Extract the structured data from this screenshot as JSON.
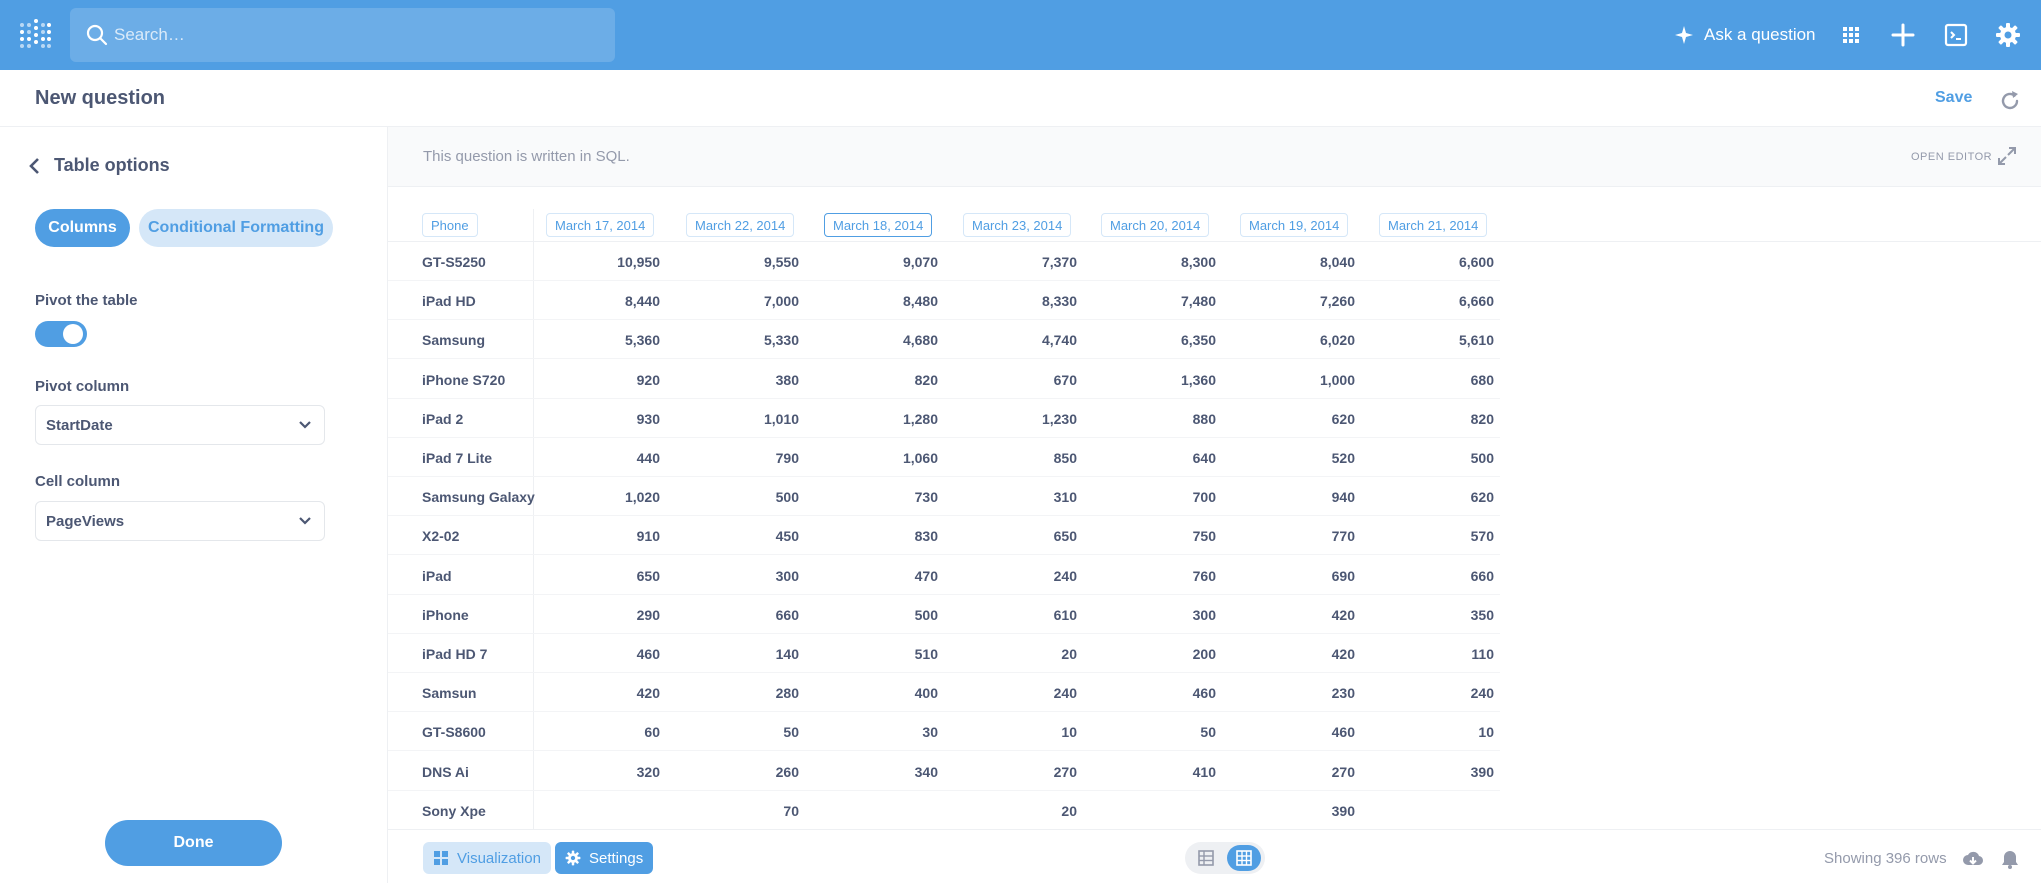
{
  "nav": {
    "search_placeholder": "Search…",
    "ask_label": "Ask a question",
    "icons": [
      "metabase-logo-icon",
      "search-icon",
      "sparkle-icon",
      "apps-grid-icon",
      "plus-icon",
      "sql-editor-icon",
      "gear-icon"
    ]
  },
  "header": {
    "title": "New question",
    "save_label": "Save"
  },
  "sidebar": {
    "back_label": "Table options",
    "tabs": [
      "Columns",
      "Conditional Formatting"
    ],
    "pivot_label": "Pivot the table",
    "pivot_on": true,
    "pivot_column_label": "Pivot column",
    "pivot_column_value": "StartDate",
    "cell_column_label": "Cell column",
    "cell_column_value": "PageViews",
    "done_label": "Done"
  },
  "main": {
    "sql_notice": "This question is written in SQL.",
    "open_editor": "OPEN EDITOR",
    "columns": [
      "Phone",
      "March 17, 2014",
      "March 22, 2014",
      "March 18, 2014",
      "March 23, 2014",
      "March 20, 2014",
      "March 19, 2014",
      "March 21, 2014"
    ],
    "selected_column": 3,
    "rows": [
      {
        "name": "GT-S5250",
        "values": [
          "10,950",
          "9,550",
          "9,070",
          "7,370",
          "8,300",
          "8,040",
          "6,600"
        ]
      },
      {
        "name": "iPad HD",
        "values": [
          "8,440",
          "7,000",
          "8,480",
          "8,330",
          "7,480",
          "7,260",
          "6,660"
        ]
      },
      {
        "name": "Samsung",
        "values": [
          "5,360",
          "5,330",
          "4,680",
          "4,740",
          "6,350",
          "6,020",
          "5,610"
        ]
      },
      {
        "name": "iPhone S720",
        "values": [
          "920",
          "380",
          "820",
          "670",
          "1,360",
          "1,000",
          "680"
        ]
      },
      {
        "name": "iPad 2",
        "values": [
          "930",
          "1,010",
          "1,280",
          "1,230",
          "880",
          "620",
          "820"
        ]
      },
      {
        "name": "iPad 7 Lite",
        "values": [
          "440",
          "790",
          "1,060",
          "850",
          "640",
          "520",
          "500"
        ]
      },
      {
        "name": "Samsung Galaxy",
        "values": [
          "1,020",
          "500",
          "730",
          "310",
          "700",
          "940",
          "620"
        ]
      },
      {
        "name": "X2-02",
        "values": [
          "910",
          "450",
          "830",
          "650",
          "750",
          "770",
          "570"
        ]
      },
      {
        "name": "iPad",
        "values": [
          "650",
          "300",
          "470",
          "240",
          "760",
          "690",
          "660"
        ]
      },
      {
        "name": "iPhone",
        "values": [
          "290",
          "660",
          "500",
          "610",
          "300",
          "420",
          "350"
        ]
      },
      {
        "name": "iPad HD 7",
        "values": [
          "460",
          "140",
          "510",
          "20",
          "200",
          "420",
          "110"
        ]
      },
      {
        "name": "Samsun",
        "values": [
          "420",
          "280",
          "400",
          "240",
          "460",
          "230",
          "240"
        ]
      },
      {
        "name": "GT-S8600",
        "values": [
          "60",
          "50",
          "30",
          "10",
          "50",
          "460",
          "10"
        ]
      },
      {
        "name": "DNS Ai",
        "values": [
          "320",
          "260",
          "340",
          "270",
          "410",
          "270",
          "390"
        ]
      },
      {
        "name": "Sony Xpe",
        "values": [
          "",
          "70",
          "",
          "20",
          "",
          "390",
          ""
        ]
      }
    ]
  },
  "footer": {
    "visualization_label": "Visualization",
    "settings_label": "Settings",
    "row_count": "Showing 396 rows"
  },
  "colors": {
    "brand": "#509ee3",
    "text": "#4c5773",
    "muted": "#949aab"
  }
}
